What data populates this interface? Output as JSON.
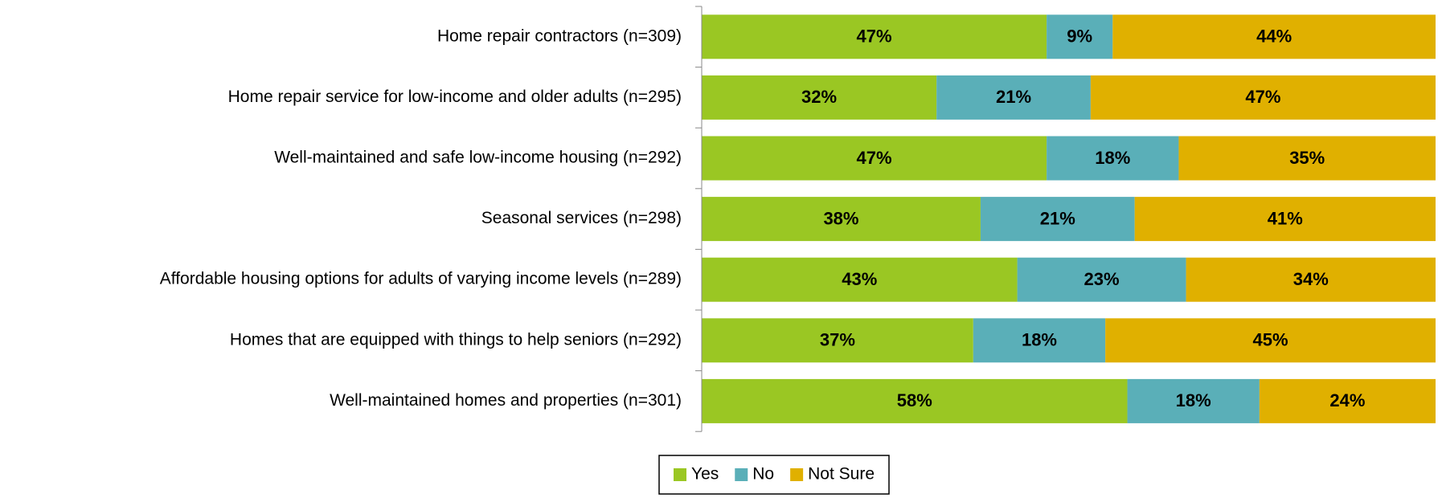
{
  "chart_data": {
    "type": "stacked_bar_horizontal",
    "categories": [
      "Home repair contractors (n=309)",
      "Home repair service for low-income and older adults (n=295)",
      "Well-maintained and safe low-income housing (n=292)",
      "Seasonal services (n=298)",
      "Affordable housing options for adults of varying income levels (n=289)",
      "Homes that are equipped with things to help seniors (n=292)",
      "Well-maintained homes and properties (n=301)"
    ],
    "series": [
      {
        "name": "Yes",
        "color": "#9ac723",
        "values": [
          47,
          32,
          47,
          38,
          43,
          37,
          58
        ],
        "value_labels": [
          "47%",
          "32%",
          "47%",
          "38%",
          "43%",
          "37%",
          "58%"
        ]
      },
      {
        "name": "No",
        "color": "#5aafb8",
        "values": [
          9,
          21,
          18,
          21,
          23,
          18,
          18
        ],
        "value_labels": [
          "9%",
          "21%",
          "18%",
          "21%",
          "23%",
          "18%",
          "18%"
        ]
      },
      {
        "name": "Not Sure",
        "color": "#e0b000",
        "values": [
          44,
          47,
          35,
          41,
          34,
          45,
          24
        ],
        "value_labels": [
          "44%",
          "47%",
          "35%",
          "41%",
          "34%",
          "45%",
          "24%"
        ]
      }
    ],
    "xlim": [
      0,
      100
    ],
    "legend": "bottom"
  }
}
